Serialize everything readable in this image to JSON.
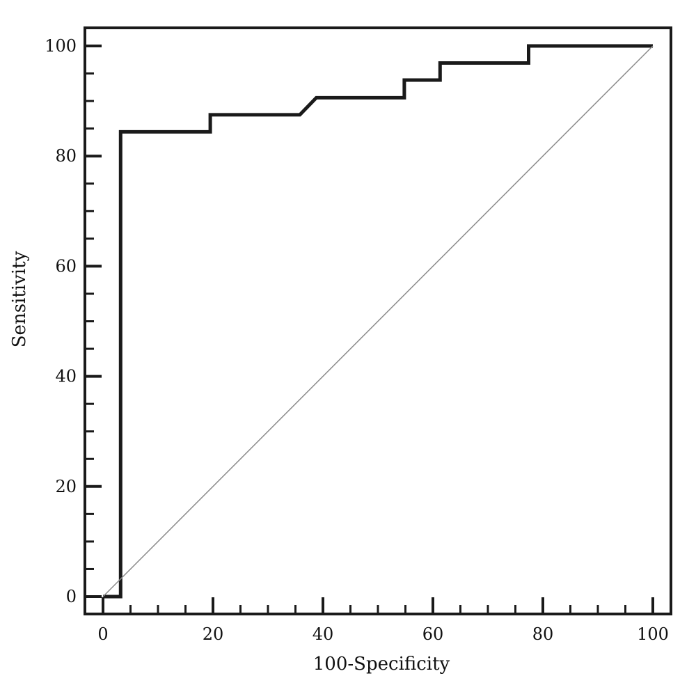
{
  "chart_data": {
    "type": "line",
    "title": "",
    "xlabel": "100-Specificity",
    "ylabel": "Sensitivity",
    "xlim": [
      0,
      100
    ],
    "ylim": [
      0,
      100
    ],
    "x_major_ticks": [
      0,
      20,
      40,
      60,
      80,
      100
    ],
    "y_major_ticks": [
      0,
      20,
      40,
      60,
      80,
      100
    ],
    "minor_tick_step": 5,
    "grid": false,
    "legend": "none",
    "series": [
      {
        "style": "step",
        "color": "#1a1a1a",
        "x": [
          0,
          3.2,
          3.2,
          19.5,
          19.5,
          35.8,
          38.8,
          54.8,
          54.8,
          61.3,
          61.3,
          77.4,
          77.4,
          100
        ],
        "y": [
          0,
          0,
          84.4,
          84.4,
          87.5,
          87.5,
          90.6,
          90.6,
          93.8,
          93.8,
          96.9,
          96.9,
          100,
          100
        ]
      },
      {
        "style": "diagonal-reference",
        "color": "#8a8a8a",
        "x": [
          0,
          100
        ],
        "y": [
          0,
          100
        ]
      }
    ]
  }
}
